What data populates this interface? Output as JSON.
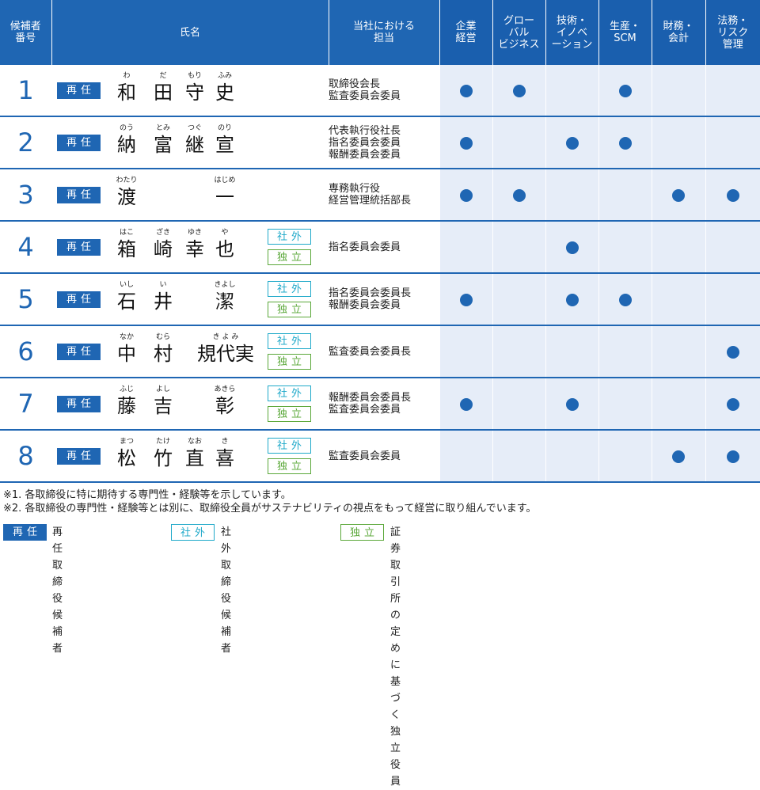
{
  "header": {
    "candidate_no": "候補者\n番号",
    "name": "氏名",
    "role": "当社における\n担当",
    "skills": [
      "企業\n経営",
      "グロー\nバル\nビジネス",
      "技術・\nイノベ\nーション",
      "生産・\nSCM",
      "財務・\n会計",
      "法務・\nリスク\n管理"
    ]
  },
  "badges": {
    "reappoint": "再任",
    "outside": "社外",
    "independent": "独立"
  },
  "rows": [
    {
      "no": "1",
      "names": [
        {
          "r": "わ",
          "k": "和"
        },
        {
          "r": "だ",
          "k": "田"
        },
        {
          "r": "もり",
          "k": "守"
        },
        {
          "r": "ふみ",
          "k": "史"
        }
      ],
      "outside": false,
      "independent": false,
      "role": "取締役会長\n監査委員会委員",
      "skills": [
        true,
        true,
        false,
        true,
        false,
        false
      ]
    },
    {
      "no": "2",
      "names": [
        {
          "r": "のう",
          "k": "納"
        },
        {
          "r": "とみ",
          "k": "富"
        },
        {
          "r": "つぐ",
          "k": "継"
        },
        {
          "r": "のり",
          "k": "宣"
        }
      ],
      "outside": false,
      "independent": false,
      "role": "代表執行役社長\n指名委員会委員\n報酬委員会委員",
      "skills": [
        true,
        false,
        true,
        true,
        false,
        false
      ]
    },
    {
      "no": "3",
      "names": [
        {
          "r": "わたり",
          "k": "渡"
        },
        {
          "r": "",
          "k": ""
        },
        {
          "r": "",
          "k": ""
        },
        {
          "r": "はじめ",
          "k": "一"
        }
      ],
      "outside": false,
      "independent": false,
      "role": "専務執行役\n経営管理統括部長",
      "skills": [
        true,
        true,
        false,
        false,
        true,
        true
      ]
    },
    {
      "no": "4",
      "names": [
        {
          "r": "はこ",
          "k": "箱"
        },
        {
          "r": "ざき",
          "k": "崎"
        },
        {
          "r": "ゆき",
          "k": "幸"
        },
        {
          "r": "や",
          "k": "也"
        }
      ],
      "outside": true,
      "independent": true,
      "role": "指名委員会委員",
      "skills": [
        false,
        false,
        true,
        false,
        false,
        false
      ]
    },
    {
      "no": "5",
      "names": [
        {
          "r": "いし",
          "k": "石"
        },
        {
          "r": "い",
          "k": "井"
        },
        {
          "r": "",
          "k": ""
        },
        {
          "r": "きよし",
          "k": "潔"
        }
      ],
      "outside": true,
      "independent": true,
      "role": "指名委員会委員長\n報酬委員会委員",
      "skills": [
        true,
        false,
        true,
        true,
        false,
        false
      ]
    },
    {
      "no": "6",
      "names": [
        {
          "r": "なか",
          "k": "中"
        },
        {
          "r": "むら",
          "k": "村"
        },
        {
          "r": "き よ み",
          "k": "規代実",
          "wide": true
        }
      ],
      "outside": true,
      "independent": true,
      "role": "監査委員会委員長",
      "skills": [
        false,
        false,
        false,
        false,
        false,
        true
      ]
    },
    {
      "no": "7",
      "names": [
        {
          "r": "ふじ",
          "k": "藤"
        },
        {
          "r": "よし",
          "k": "吉"
        },
        {
          "r": "",
          "k": ""
        },
        {
          "r": "あきら",
          "k": "彰"
        }
      ],
      "outside": true,
      "independent": true,
      "role": "報酬委員会委員長\n監査委員会委員",
      "skills": [
        true,
        false,
        true,
        false,
        false,
        true
      ]
    },
    {
      "no": "8",
      "names": [
        {
          "r": "まつ",
          "k": "松"
        },
        {
          "r": "たけ",
          "k": "竹"
        },
        {
          "r": "なお",
          "k": "直"
        },
        {
          "r": "き",
          "k": "喜"
        }
      ],
      "outside": true,
      "independent": true,
      "role": "監査委員会委員",
      "skills": [
        false,
        false,
        false,
        false,
        true,
        true
      ]
    }
  ],
  "notes": [
    "※1. 各取締役に特に期待する専門性・経験等を示しています。",
    "※2. 各取締役の専門性・経験等とは別に、取締役全員がサステナビリティの視点をもって経営に取り組んでいます。"
  ],
  "legend": {
    "reappoint_desc": "再任取締役候補者",
    "outside_desc": "社外取締役候補者",
    "independent_desc": "証券取引所の定めに基づく独立役員"
  },
  "colors": {
    "primary": "#1f66b3",
    "skill_bg": "#e6edf8",
    "outside": "#1fa9c9",
    "independent": "#5ba83a"
  },
  "icons": {
    "skill_mark": "filled-circle"
  }
}
